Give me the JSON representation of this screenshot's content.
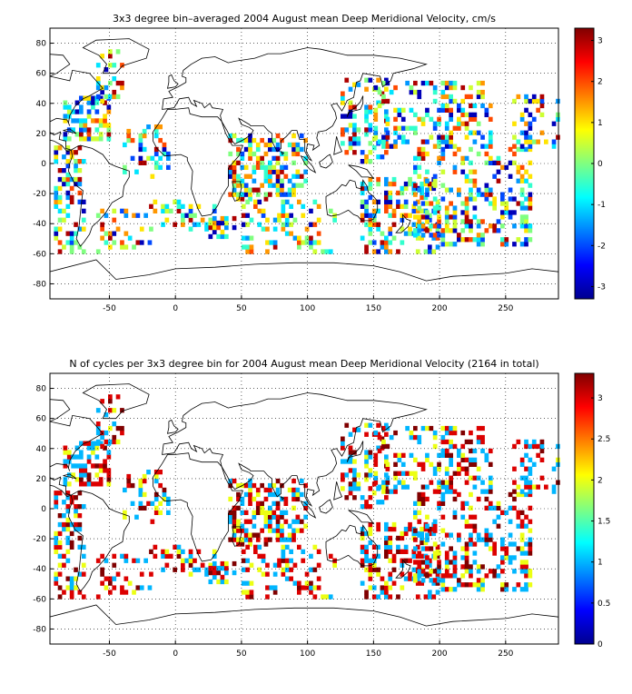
{
  "chart_data": [
    {
      "type": "heatmap",
      "title": "3x3 degree bin–averaged 2004 August mean Deep Meridional Velocity, cm/s",
      "xlim": [
        -95,
        290
      ],
      "ylim": [
        -90,
        90
      ],
      "xticks": [
        -50,
        0,
        50,
        100,
        150,
        200,
        250
      ],
      "yticks": [
        80,
        60,
        40,
        20,
        0,
        -20,
        -40,
        -60,
        -80
      ],
      "colorbar": {
        "min": -3.3,
        "max": 3.3,
        "ticks": [
          3,
          2,
          1,
          0,
          -1,
          -2,
          -3
        ],
        "colormap": "jet"
      },
      "grid": true,
      "seed": 11,
      "cell_values": [
        -3,
        -2,
        -1.5,
        -1,
        -0.5,
        0,
        0.5,
        1,
        1.5,
        2,
        3
      ],
      "regions": [
        {
          "x": [
            -85,
            -50
          ],
          "y": [
            15,
            45
          ],
          "p": 0.55
        },
        {
          "x": [
            -60,
            -40
          ],
          "y": [
            40,
            75
          ],
          "p": 0.4
        },
        {
          "x": [
            -92,
            -70
          ],
          "y": [
            -60,
            10
          ],
          "p": 0.45
        },
        {
          "x": [
            -60,
            -20
          ],
          "y": [
            -60,
            -30
          ],
          "p": 0.3
        },
        {
          "x": [
            -40,
            -5
          ],
          "y": [
            -10,
            25
          ],
          "p": 0.3
        },
        {
          "x": [
            -20,
            10
          ],
          "y": [
            -45,
            -25
          ],
          "p": 0.25
        },
        {
          "x": [
            10,
            30
          ],
          "y": [
            -45,
            -25
          ],
          "p": 0.3
        },
        {
          "x": [
            25,
            45
          ],
          "y": [
            -50,
            -35
          ],
          "p": 0.5
        },
        {
          "x": [
            40,
            100
          ],
          "y": [
            -25,
            20
          ],
          "p": 0.5
        },
        {
          "x": [
            50,
            110
          ],
          "y": [
            -60,
            -25
          ],
          "p": 0.3
        },
        {
          "x": [
            110,
            125
          ],
          "y": [
            -60,
            -30
          ],
          "p": 0.2
        },
        {
          "x": [
            125,
            160
          ],
          "y": [
            0,
            55
          ],
          "p": 0.35
        },
        {
          "x": [
            140,
            200
          ],
          "y": [
            -60,
            -10
          ],
          "p": 0.45
        },
        {
          "x": [
            150,
            240
          ],
          "y": [
            10,
            55
          ],
          "p": 0.35
        },
        {
          "x": [
            180,
            270
          ],
          "y": [
            -55,
            10
          ],
          "p": 0.35
        },
        {
          "x": [
            255,
            290
          ],
          "y": [
            10,
            45
          ],
          "p": 0.35
        }
      ]
    },
    {
      "type": "heatmap",
      "title": "N of cycles per 3x3 degree bin for 2004 August mean Deep Meridional Velocity (2164 in total)",
      "xlim": [
        -95,
        290
      ],
      "ylim": [
        -90,
        90
      ],
      "xticks": [
        -50,
        0,
        50,
        100,
        150,
        200,
        250
      ],
      "yticks": [
        80,
        60,
        40,
        20,
        0,
        -20,
        -40,
        -60,
        -80
      ],
      "colorbar": {
        "min": 0,
        "max": 3.3,
        "ticks": [
          3,
          2.5,
          2,
          1.5,
          1,
          0.5,
          0
        ],
        "colormap": "jet"
      },
      "grid": true,
      "seed": 11,
      "cell_values": [
        1,
        1,
        2,
        3,
        3,
        3.3
      ],
      "regions": [
        {
          "x": [
            -85,
            -50
          ],
          "y": [
            15,
            45
          ],
          "p": 0.55
        },
        {
          "x": [
            -60,
            -40
          ],
          "y": [
            40,
            75
          ],
          "p": 0.4
        },
        {
          "x": [
            -92,
            -70
          ],
          "y": [
            -60,
            10
          ],
          "p": 0.45
        },
        {
          "x": [
            -60,
            -20
          ],
          "y": [
            -60,
            -30
          ],
          "p": 0.3
        },
        {
          "x": [
            -40,
            -5
          ],
          "y": [
            -10,
            25
          ],
          "p": 0.3
        },
        {
          "x": [
            -20,
            10
          ],
          "y": [
            -45,
            -25
          ],
          "p": 0.25
        },
        {
          "x": [
            10,
            30
          ],
          "y": [
            -45,
            -25
          ],
          "p": 0.3
        },
        {
          "x": [
            25,
            45
          ],
          "y": [
            -50,
            -35
          ],
          "p": 0.5
        },
        {
          "x": [
            40,
            100
          ],
          "y": [
            -25,
            20
          ],
          "p": 0.5
        },
        {
          "x": [
            50,
            110
          ],
          "y": [
            -60,
            -25
          ],
          "p": 0.3
        },
        {
          "x": [
            110,
            125
          ],
          "y": [
            -60,
            -30
          ],
          "p": 0.2
        },
        {
          "x": [
            125,
            160
          ],
          "y": [
            0,
            55
          ],
          "p": 0.35
        },
        {
          "x": [
            140,
            200
          ],
          "y": [
            -60,
            -10
          ],
          "p": 0.45
        },
        {
          "x": [
            150,
            240
          ],
          "y": [
            10,
            55
          ],
          "p": 0.35
        },
        {
          "x": [
            180,
            270
          ],
          "y": [
            -55,
            10
          ],
          "p": 0.35
        },
        {
          "x": [
            255,
            290
          ],
          "y": [
            10,
            45
          ],
          "p": 0.35
        }
      ]
    }
  ]
}
